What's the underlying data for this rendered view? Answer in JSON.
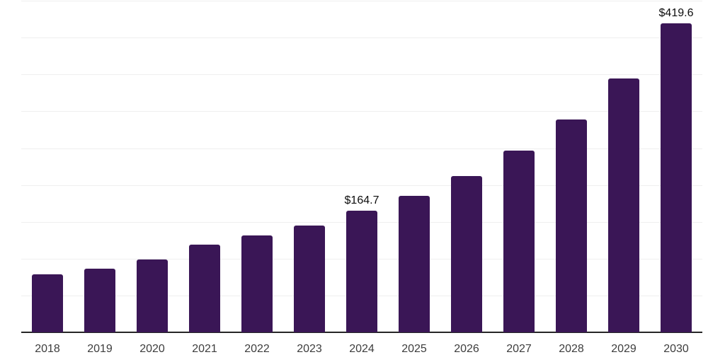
{
  "chart_data": {
    "type": "bar",
    "title": "",
    "xlabel": "",
    "ylabel": "",
    "categories": [
      "2018",
      "2019",
      "2020",
      "2021",
      "2022",
      "2023",
      "2024",
      "2025",
      "2026",
      "2027",
      "2028",
      "2029",
      "2030"
    ],
    "values": [
      78.9,
      86.5,
      99.0,
      119.1,
      131.0,
      145.2,
      164.7,
      185.6,
      212.5,
      246.2,
      288.5,
      344.2,
      419.6
    ],
    "value_labels": [
      {
        "category": "2024",
        "index": 6,
        "text": "$164.7"
      },
      {
        "category": "2030",
        "index": 12,
        "text": "$419.6"
      }
    ],
    "ylim": [
      0,
      450
    ],
    "gridline_step": 50,
    "grid": true,
    "legend": "none",
    "colors": {
      "bar": "#3a1656",
      "gridline": "#efefef",
      "axis": "#262626",
      "x_label_text": "#3d3d3d",
      "value_label_text": "#0d0d0d",
      "background": "#ffffff"
    }
  }
}
